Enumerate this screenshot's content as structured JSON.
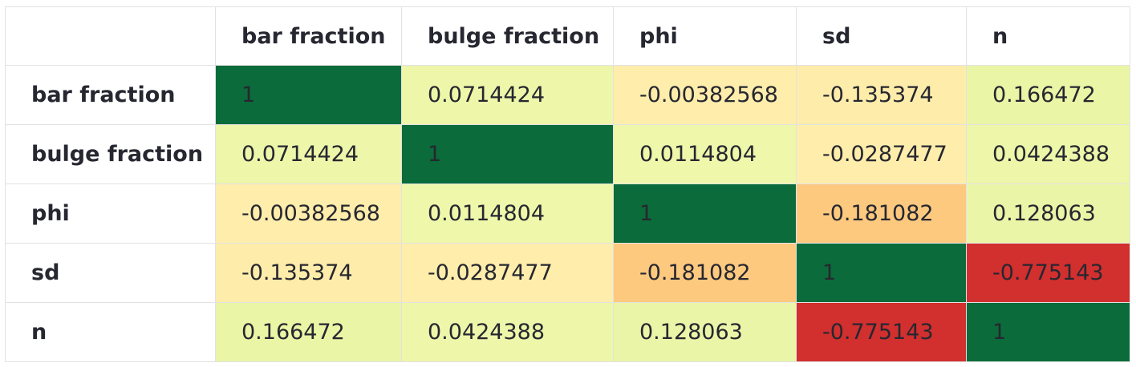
{
  "table": {
    "corner": "",
    "columns": [
      "bar fraction",
      "bulge fraction",
      "phi",
      "sd",
      "n"
    ],
    "rows": [
      {
        "label": "bar fraction",
        "cells": [
          {
            "value": "1",
            "bg": "#0b6b3a"
          },
          {
            "value": "0.0714424",
            "bg": "#eef6aa"
          },
          {
            "value": "-0.00382568",
            "bg": "#feedab"
          },
          {
            "value": "-0.135374",
            "bg": "#feecaa"
          },
          {
            "value": "0.166472",
            "bg": "#eaf5a6"
          }
        ]
      },
      {
        "label": "bulge fraction",
        "cells": [
          {
            "value": "0.0714424",
            "bg": "#eef6aa"
          },
          {
            "value": "1",
            "bg": "#0b6b3a"
          },
          {
            "value": "0.0114804",
            "bg": "#eff7ab"
          },
          {
            "value": "-0.0287477",
            "bg": "#feedab"
          },
          {
            "value": "0.0424388",
            "bg": "#eef6aa"
          }
        ]
      },
      {
        "label": "phi",
        "cells": [
          {
            "value": "-0.00382568",
            "bg": "#feedab"
          },
          {
            "value": "0.0114804",
            "bg": "#eff7ab"
          },
          {
            "value": "1",
            "bg": "#0b6b3a"
          },
          {
            "value": "-0.181082",
            "bg": "#fdc97f"
          },
          {
            "value": "0.128063",
            "bg": "#ebf5a8"
          }
        ]
      },
      {
        "label": "sd",
        "cells": [
          {
            "value": "-0.135374",
            "bg": "#feecaa"
          },
          {
            "value": "-0.0287477",
            "bg": "#feedab"
          },
          {
            "value": "-0.181082",
            "bg": "#fdc97f"
          },
          {
            "value": "1",
            "bg": "#0b6b3a"
          },
          {
            "value": "-0.775143",
            "bg": "#d22f2f"
          }
        ]
      },
      {
        "label": "n",
        "cells": [
          {
            "value": "0.166472",
            "bg": "#eaf5a6"
          },
          {
            "value": "0.0424388",
            "bg": "#eef6aa"
          },
          {
            "value": "0.128063",
            "bg": "#ebf5a8"
          },
          {
            "value": "-0.775143",
            "bg": "#d22f2f"
          },
          {
            "value": "1",
            "bg": "#0b6b3a"
          }
        ]
      }
    ]
  }
}
